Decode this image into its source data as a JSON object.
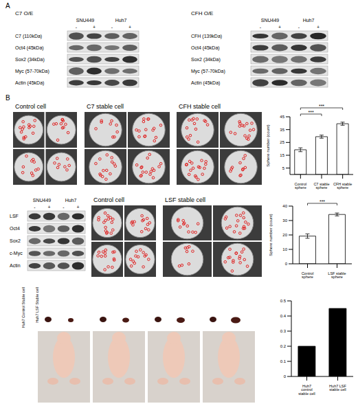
{
  "panel_labels": [
    "A",
    "B"
  ],
  "blots": [
    {
      "title": "C7 O/E",
      "cell_lines": [
        "SNU449",
        "Huh7"
      ],
      "lanes": [
        "-",
        "+"
      ],
      "rows": [
        "C7 (110kDa)",
        "Oct4 (45kDa)",
        "Sox2 (34kDa)",
        "Myc (57-70kDa)",
        "Actin (45kDa)"
      ]
    },
    {
      "title": "CFH O/E",
      "cell_lines": [
        "SNU449",
        "Huh7"
      ],
      "lanes": [
        "-",
        "+"
      ],
      "rows": [
        "CFH (139kDa)",
        "Oct4 (45kDa)",
        "Sox2 (34kDa)",
        "Myc (57-70kDa)",
        "Actin (45kDa)"
      ]
    },
    {
      "cell_lines": [
        "SNU449",
        "Huh7"
      ],
      "lanes": [
        "-",
        "+"
      ],
      "rows": [
        "LSF",
        "Oct4",
        "Sox2",
        "c-Myc",
        "Actin"
      ]
    }
  ],
  "sphere_images": [
    {
      "labels": [
        "Control cell",
        "C7 stable cell",
        "CFH stable cell"
      ]
    },
    {
      "labels": [
        "Control cell",
        "LSF stable cell"
      ]
    }
  ],
  "xenograft": {
    "labels": [
      "Huh7 Control Stable cell",
      "Huh7 LSF Stable cell"
    ]
  },
  "chart_data": [
    {
      "type": "bar",
      "categories": [
        "Control sphere",
        "C7 stable sphere",
        "CFH stable sphere"
      ],
      "values": [
        19.3,
        29.5,
        39.6
      ],
      "errors": [
        1.5,
        1.2,
        1.2
      ],
      "y_label": "Sphere number (count)",
      "ylim": [
        0,
        45
      ],
      "yticks": [
        0,
        5,
        10,
        15,
        20,
        25,
        30,
        35,
        40,
        45
      ],
      "color": "#ffffff",
      "annotations": [
        {
          "text": "***",
          "from": "Control sphere",
          "to": "C7 stable sphere"
        },
        {
          "text": "***",
          "from": "Control sphere",
          "to": "CFH stable sphere"
        }
      ]
    },
    {
      "type": "bar",
      "categories": [
        "Control sphere",
        "LSF stable sphere"
      ],
      "values": [
        19.2,
        34.2
      ],
      "errors": [
        1.5,
        1.0
      ],
      "y_label": "Sphere number (count)",
      "ylim": [
        0,
        40
      ],
      "yticks": [
        0,
        5,
        10,
        15,
        20,
        25,
        30,
        35,
        40
      ],
      "color": "#ffffff",
      "annotations": [
        {
          "text": "***",
          "from": "Control sphere",
          "to": "LSF stable sphere"
        }
      ]
    },
    {
      "type": "bar",
      "categories": [
        "Huh7 control stable cell",
        "Huh7 LSF stable cell"
      ],
      "values": [
        0.2,
        0.45
      ],
      "ylim": [
        0,
        0.5
      ],
      "yticks": [
        0,
        0.1,
        0.2,
        0.3,
        0.4,
        0.5
      ],
      "color": "#000000"
    }
  ]
}
